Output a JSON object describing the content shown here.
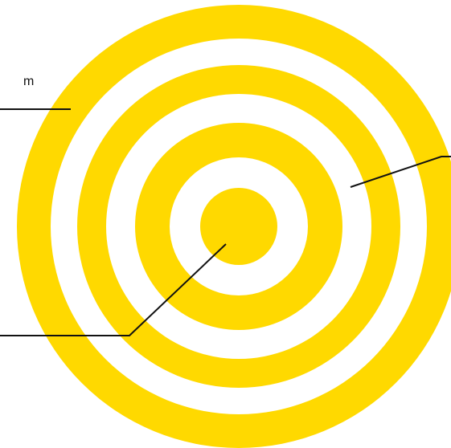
{
  "diagram": {
    "ring_color": "#FFD900",
    "background_color": "#FFFFFF",
    "line_color": "#111111",
    "callouts": [
      {
        "id": "outer-ring",
        "text": "m"
      },
      {
        "id": "middle-ring",
        "text": ""
      },
      {
        "id": "center",
        "text": ""
      }
    ]
  }
}
